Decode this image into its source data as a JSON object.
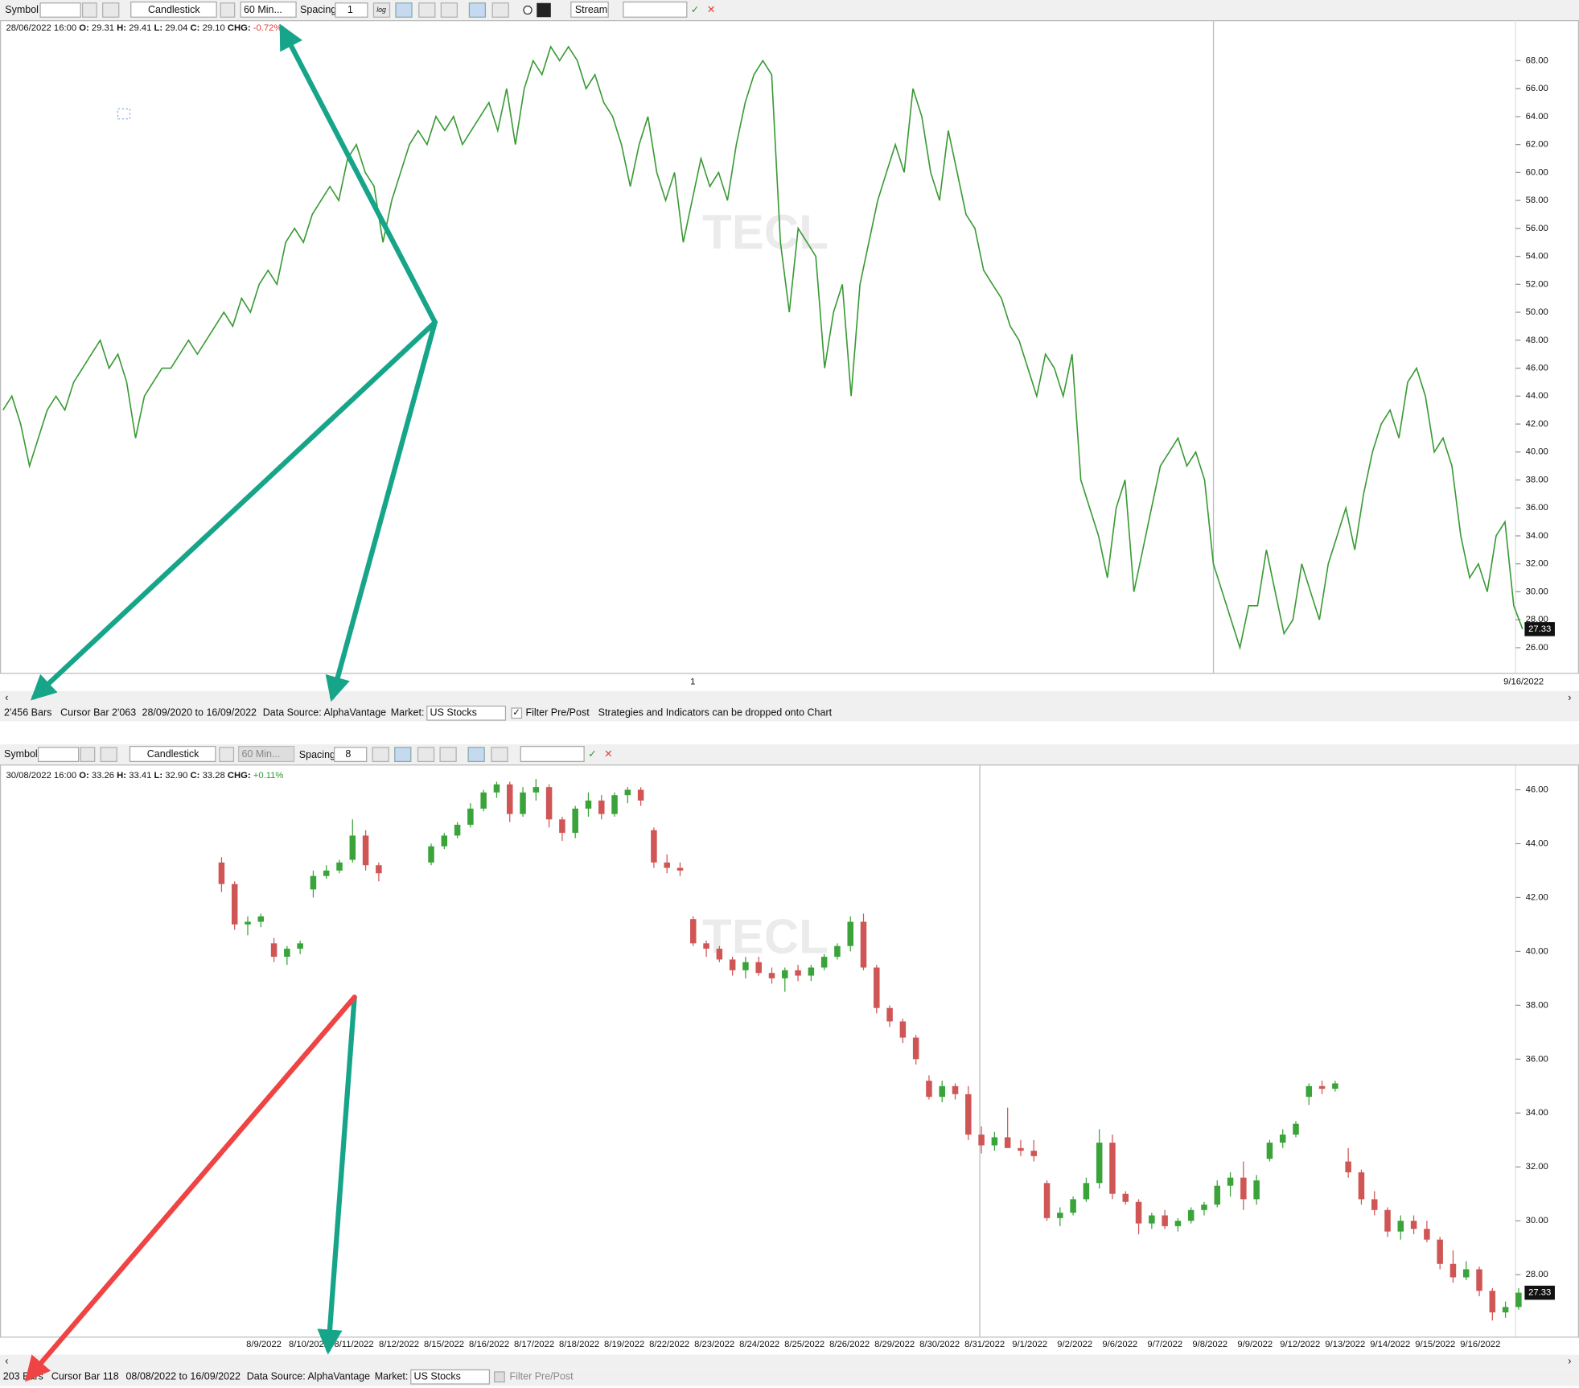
{
  "panels": [
    {
      "toolbar": {
        "symbol_label": "Symbol",
        "chart_style": "Candlestick",
        "interval": "60 Min...",
        "spacing_label": "Spacing",
        "spacing": "1",
        "log_label": "log",
        "stream": "Stream"
      },
      "info": {
        "datetime": "28/06/2022 16:00",
        "fields": [
          {
            "label": "O:",
            "value": "29.31"
          },
          {
            "label": "H:",
            "value": "29.41"
          },
          {
            "label": "L:",
            "value": "29.04"
          },
          {
            "label": "C:",
            "value": "29.10"
          }
        ],
        "change_label": "CHG:",
        "change": "-0.72%",
        "change_color": "#e53935"
      },
      "chart_data": {
        "type": "line",
        "color": "#3a9a35",
        "watermark": "TECL",
        "last_price": 27.33,
        "xtick_labels": [
          "1",
          "9/16/2022"
        ],
        "ylim": [
          24.2,
          70.9
        ],
        "yticks": [
          {
            "value": 26,
            "label": "26.00"
          },
          {
            "value": 28,
            "label": "28.00"
          },
          {
            "value": 30,
            "label": "30.00"
          },
          {
            "value": 32,
            "label": "32.00"
          },
          {
            "value": 34,
            "label": "34.00"
          },
          {
            "value": 36,
            "label": "36.00"
          },
          {
            "value": 38,
            "label": "38.00"
          },
          {
            "value": 40,
            "label": "40.00"
          },
          {
            "value": 42,
            "label": "42.00"
          },
          {
            "value": 44,
            "label": "44.00"
          },
          {
            "value": 46,
            "label": "46.00"
          },
          {
            "value": 48,
            "label": "48.00"
          },
          {
            "value": 50,
            "label": "50.00"
          },
          {
            "value": 52,
            "label": "52.00"
          },
          {
            "value": 54,
            "label": "54.00"
          },
          {
            "value": 56,
            "label": "56.00"
          },
          {
            "value": 58,
            "label": "58.00"
          },
          {
            "value": 60,
            "label": "60.00"
          },
          {
            "value": 62,
            "label": "62.00"
          },
          {
            "value": 64,
            "label": "64.00"
          },
          {
            "value": 66,
            "label": "66.00"
          },
          {
            "value": 68,
            "label": "68.00"
          }
        ],
        "values": [
          43,
          44,
          42,
          39,
          41,
          43,
          44,
          43,
          45,
          46,
          47,
          48,
          46,
          47,
          45,
          41,
          44,
          45,
          46,
          46,
          47,
          48,
          47,
          48,
          49,
          50,
          49,
          51,
          50,
          52,
          53,
          52,
          55,
          56,
          55,
          57,
          58,
          59,
          58,
          61,
          62,
          60,
          59,
          55,
          58,
          60,
          62,
          63,
          62,
          64,
          63,
          64,
          62,
          63,
          64,
          65,
          63,
          66,
          62,
          66,
          68,
          67,
          69,
          68,
          69,
          68,
          66,
          67,
          65,
          64,
          62,
          59,
          62,
          64,
          60,
          58,
          60,
          55,
          58,
          61,
          59,
          60,
          58,
          62,
          65,
          67,
          68,
          67,
          55,
          50,
          56,
          55,
          54,
          46,
          50,
          52,
          44,
          52,
          55,
          58,
          60,
          62,
          60,
          66,
          64,
          60,
          58,
          63,
          60,
          57,
          56,
          53,
          52,
          51,
          49,
          48,
          46,
          44,
          47,
          46,
          44,
          47,
          38,
          36,
          34,
          31,
          36,
          38,
          30,
          33,
          36,
          39,
          40,
          41,
          39,
          40,
          38,
          32,
          30,
          28,
          26,
          29,
          29,
          33,
          30,
          27,
          28,
          32,
          30,
          28,
          32,
          34,
          36,
          33,
          37,
          40,
          42,
          43,
          41,
          45,
          46,
          44,
          40,
          41,
          39,
          34,
          31,
          32,
          30,
          34,
          35,
          29,
          27.33
        ]
      },
      "status": {
        "bars": "2'456 Bars",
        "cursor": "Cursor Bar 2'063",
        "range": "28/09/2020 to 16/09/2022",
        "source": "Data Source: AlphaVantage",
        "market_label": "Market:",
        "market": "US Stocks",
        "filter": "Filter Pre/Post",
        "hint": "Strategies and Indicators can be dropped onto Chart"
      }
    },
    {
      "toolbar": {
        "symbol_label": "Symbol",
        "chart_style": "Candlestick",
        "interval": "60 Min...",
        "spacing_label": "Spacing",
        "spacing": "8"
      },
      "info": {
        "datetime": "30/08/2022 16:00",
        "fields": [
          {
            "label": "O:",
            "value": "33.26"
          },
          {
            "label": "H:",
            "value": "33.41"
          },
          {
            "label": "L:",
            "value": "32.90"
          },
          {
            "label": "C:",
            "value": "33.28"
          }
        ],
        "change_label": "CHG:",
        "change": "+0.11%",
        "change_color": "#2e9a2e"
      },
      "chart_data": {
        "type": "candlestick",
        "up_color": "#3aa33a",
        "down_color": "#d05656",
        "watermark": "TECL",
        "last_price": 27.33,
        "categories": [
          "8/9/2022",
          "8/10/2022",
          "8/11/2022",
          "8/12/2022",
          "8/15/2022",
          "8/16/2022",
          "8/17/2022",
          "8/18/2022",
          "8/19/2022",
          "8/22/2022",
          "8/23/2022",
          "8/24/2022",
          "8/25/2022",
          "8/26/2022",
          "8/29/2022",
          "8/30/2022",
          "8/31/2022",
          "9/1/2022",
          "9/2/2022",
          "9/6/2022",
          "9/7/2022",
          "9/8/2022",
          "9/9/2022",
          "9/12/2022",
          "9/13/2022",
          "9/14/2022",
          "9/15/2022",
          "9/16/2022"
        ],
        "ylim": [
          25.7,
          46.9
        ],
        "yticks": [
          {
            "value": 28,
            "label": "28.00"
          },
          {
            "value": 30,
            "label": "30.00"
          },
          {
            "value": 32,
            "label": "32.00"
          },
          {
            "value": 34,
            "label": "34.00"
          },
          {
            "value": 36,
            "label": "36.00"
          },
          {
            "value": 38,
            "label": "38.00"
          },
          {
            "value": 40,
            "label": "40.00"
          },
          {
            "value": 42,
            "label": "42.00"
          },
          {
            "value": 44,
            "label": "44.00"
          },
          {
            "value": 46,
            "label": "46.00"
          }
        ],
        "ohlc": [
          [
            43.3,
            43.5,
            42.2,
            42.5
          ],
          [
            42.5,
            42.6,
            40.8,
            41.0
          ],
          [
            41.0,
            41.3,
            40.6,
            41.1
          ],
          [
            41.1,
            41.4,
            40.9,
            41.3
          ],
          [
            40.3,
            40.5,
            39.6,
            39.8
          ],
          [
            39.8,
            40.2,
            39.5,
            40.1
          ],
          [
            40.1,
            40.4,
            39.9,
            40.3
          ],
          [
            42.3,
            43.0,
            42.0,
            42.8
          ],
          [
            42.8,
            43.2,
            42.7,
            43.0
          ],
          [
            43.0,
            43.4,
            42.9,
            43.3
          ],
          [
            43.4,
            44.9,
            43.3,
            44.3
          ],
          [
            44.3,
            44.5,
            43.0,
            43.2
          ],
          [
            43.2,
            43.3,
            42.6,
            42.9
          ],
          null,
          null,
          null,
          [
            43.3,
            44.0,
            43.2,
            43.9
          ],
          [
            43.9,
            44.4,
            43.8,
            44.3
          ],
          [
            44.3,
            44.8,
            44.2,
            44.7
          ],
          [
            44.7,
            45.5,
            44.6,
            45.3
          ],
          [
            45.3,
            46.0,
            45.2,
            45.9
          ],
          [
            45.9,
            46.3,
            45.7,
            46.2
          ],
          [
            46.2,
            46.3,
            44.8,
            45.1
          ],
          [
            45.1,
            46.1,
            45.0,
            45.9
          ],
          [
            45.9,
            46.4,
            45.6,
            46.1
          ],
          [
            46.1,
            46.2,
            44.6,
            44.9
          ],
          [
            44.9,
            45.0,
            44.1,
            44.4
          ],
          [
            44.4,
            45.4,
            44.2,
            45.3
          ],
          [
            45.3,
            45.9,
            45.0,
            45.6
          ],
          [
            45.6,
            45.8,
            44.9,
            45.1
          ],
          [
            45.1,
            45.9,
            45.0,
            45.8
          ],
          [
            45.8,
            46.1,
            45.5,
            46.0
          ],
          [
            46.0,
            46.1,
            45.4,
            45.6
          ],
          [
            44.5,
            44.6,
            43.1,
            43.3
          ],
          [
            43.3,
            43.6,
            42.9,
            43.1
          ],
          [
            43.1,
            43.3,
            42.8,
            43.0
          ],
          [
            41.2,
            41.3,
            40.2,
            40.3
          ],
          [
            40.3,
            40.4,
            39.8,
            40.1
          ],
          [
            40.1,
            40.2,
            39.6,
            39.7
          ],
          [
            39.7,
            39.8,
            39.1,
            39.3
          ],
          [
            39.3,
            39.8,
            39.0,
            39.6
          ],
          [
            39.6,
            39.8,
            39.1,
            39.2
          ],
          [
            39.2,
            39.4,
            38.8,
            39.0
          ],
          [
            39.0,
            39.4,
            38.5,
            39.3
          ],
          [
            39.3,
            39.5,
            38.9,
            39.1
          ],
          [
            39.1,
            39.5,
            38.9,
            39.4
          ],
          [
            39.4,
            39.9,
            39.3,
            39.8
          ],
          [
            39.8,
            40.3,
            39.7,
            40.2
          ],
          [
            40.2,
            41.3,
            40.0,
            41.1
          ],
          [
            41.1,
            41.4,
            39.3,
            39.4
          ],
          [
            39.4,
            39.5,
            37.7,
            37.9
          ],
          [
            37.9,
            38.0,
            37.2,
            37.4
          ],
          [
            37.4,
            37.5,
            36.6,
            36.8
          ],
          [
            36.8,
            36.9,
            35.8,
            36.0
          ],
          [
            35.2,
            35.4,
            34.5,
            34.6
          ],
          [
            34.6,
            35.2,
            34.4,
            35.0
          ],
          [
            35.0,
            35.1,
            34.5,
            34.7
          ],
          [
            34.7,
            35.0,
            33.0,
            33.2
          ],
          [
            33.2,
            33.5,
            32.5,
            32.8
          ],
          [
            32.8,
            33.3,
            32.6,
            33.1
          ],
          [
            33.1,
            34.2,
            32.8,
            32.7
          ],
          [
            32.7,
            33.0,
            32.4,
            32.6
          ],
          [
            32.6,
            33.0,
            32.2,
            32.4
          ],
          [
            31.4,
            31.5,
            30.0,
            30.1
          ],
          [
            30.1,
            30.5,
            29.8,
            30.3
          ],
          [
            30.3,
            30.9,
            30.2,
            30.8
          ],
          [
            30.8,
            31.6,
            30.7,
            31.4
          ],
          [
            31.4,
            33.4,
            31.2,
            32.9
          ],
          [
            32.9,
            33.2,
            30.8,
            31.0
          ],
          [
            31.0,
            31.1,
            30.6,
            30.7
          ],
          [
            30.7,
            30.8,
            29.5,
            29.9
          ],
          [
            29.9,
            30.3,
            29.7,
            30.2
          ],
          [
            30.2,
            30.4,
            29.7,
            29.8
          ],
          [
            29.8,
            30.1,
            29.6,
            30.0
          ],
          [
            30.0,
            30.5,
            29.9,
            30.4
          ],
          [
            30.4,
            30.7,
            30.2,
            30.6
          ],
          [
            30.6,
            31.5,
            30.5,
            31.3
          ],
          [
            31.3,
            31.8,
            30.9,
            31.6
          ],
          [
            31.6,
            32.2,
            30.4,
            30.8
          ],
          [
            30.8,
            31.7,
            30.6,
            31.5
          ],
          [
            32.3,
            33.0,
            32.2,
            32.9
          ],
          [
            32.9,
            33.4,
            32.7,
            33.2
          ],
          [
            33.2,
            33.7,
            33.1,
            33.6
          ],
          [
            34.6,
            35.1,
            34.3,
            35.0
          ],
          [
            35.0,
            35.2,
            34.7,
            34.9
          ],
          [
            34.9,
            35.2,
            34.8,
            35.1
          ],
          [
            32.2,
            32.7,
            31.6,
            31.8
          ],
          [
            31.8,
            31.9,
            30.6,
            30.8
          ],
          [
            30.8,
            31.1,
            30.2,
            30.4
          ],
          [
            30.4,
            30.5,
            29.4,
            29.6
          ],
          [
            29.6,
            30.2,
            29.3,
            30.0
          ],
          [
            30.0,
            30.2,
            29.5,
            29.7
          ],
          [
            29.7,
            30.0,
            29.2,
            29.3
          ],
          [
            29.3,
            29.4,
            28.2,
            28.4
          ],
          [
            28.4,
            28.9,
            27.7,
            27.9
          ],
          [
            27.9,
            28.5,
            27.8,
            28.2
          ],
          [
            28.2,
            28.3,
            27.2,
            27.4
          ],
          [
            27.4,
            27.5,
            26.3,
            26.6
          ],
          [
            26.6,
            27.0,
            26.4,
            26.8
          ],
          [
            26.8,
            27.5,
            26.7,
            27.33
          ]
        ]
      },
      "status": {
        "bars": "203 Bars",
        "cursor": "Cursor Bar 118",
        "range": "08/08/2022 to 16/09/2022",
        "source": "Data Source: AlphaVantage",
        "market_label": "Market:",
        "market": "US Stocks",
        "filter": "Filter Pre/Post"
      }
    }
  ]
}
